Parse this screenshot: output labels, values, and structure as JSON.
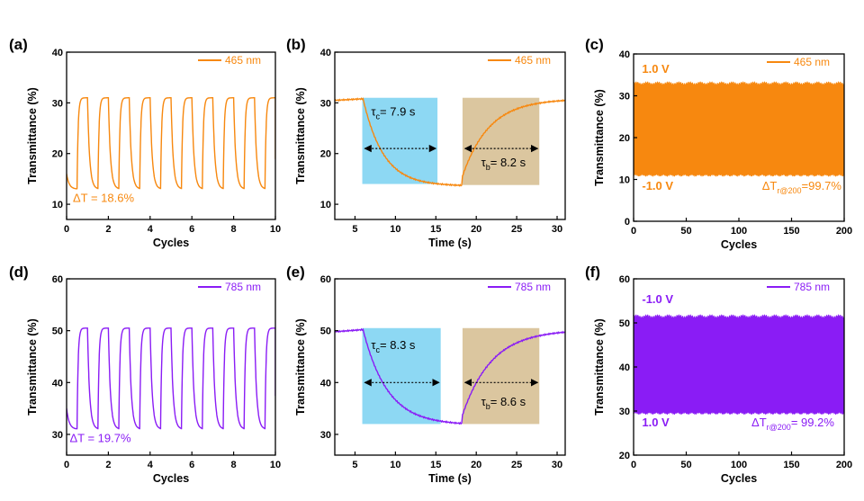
{
  "colors": {
    "orange": "#F7880F",
    "purple": "#8A1CF5",
    "blue_box": "#87D6F2",
    "tan_box": "#D9C39A"
  },
  "chart_data": [
    {
      "id": "a",
      "panel_label": "(a)",
      "type": "line",
      "color": "orange",
      "xlabel": "Cycles",
      "ylabel": "Transmittance (%)",
      "xlim": [
        0,
        10
      ],
      "ylim": [
        7,
        40
      ],
      "xticks": [
        0,
        2,
        4,
        6,
        8,
        10
      ],
      "yticks": [
        10,
        20,
        30,
        40
      ],
      "series": [
        {
          "name": "465 nm",
          "kind": "cycling",
          "cycles": 10,
          "high": 31,
          "low": 13,
          "tau_rise": 0.05,
          "tau_fall": 0.1,
          "start": 16
        }
      ],
      "annotations": [
        {
          "text": "ΔT = 18.6%",
          "x": 0.3,
          "y": 10.5,
          "color": "orange"
        }
      ]
    },
    {
      "id": "b",
      "panel_label": "(b)",
      "type": "line",
      "color": "orange",
      "xlabel": "Time (s)",
      "ylabel": "Transmittance (%)",
      "xlim": [
        2.5,
        31
      ],
      "ylim": [
        7,
        40
      ],
      "xticks": [
        5,
        10,
        15,
        20,
        25,
        30
      ],
      "yticks": [
        10,
        20,
        30,
        40
      ],
      "series": [
        {
          "name": "465 nm",
          "kind": "single",
          "t_color": 6,
          "t_bleach": 18.2,
          "high": 30.8,
          "low": 13.6,
          "tau_c": 2.5,
          "tau_b": 3.3,
          "start": 30.5
        }
      ],
      "boxes": [
        {
          "x0": 5.9,
          "x1": 15.2,
          "y0": 14,
          "y1": 31,
          "color": "blue_box"
        },
        {
          "x0": 18.3,
          "x1": 27.8,
          "y0": 13.8,
          "y1": 31,
          "color": "tan_box"
        }
      ],
      "arrows": [
        {
          "x0": 6.2,
          "x1": 15,
          "y": 21
        },
        {
          "x0": 18.6,
          "x1": 27.6,
          "y": 21
        }
      ],
      "annotations": [
        {
          "text": "τ",
          "sub": "c",
          "rest": "= 7.9 s",
          "x": 7.0,
          "y": 27.5
        },
        {
          "text": "τ",
          "sub": "b",
          "rest": "= 8.2 s",
          "x": 20.6,
          "y": 17.5
        }
      ]
    },
    {
      "id": "c",
      "panel_label": "(c)",
      "type": "area",
      "color": "orange",
      "xlabel": "Cycles",
      "ylabel": "Transmittance (%)",
      "xlim": [
        0,
        200
      ],
      "ylim": [
        0,
        40
      ],
      "xticks": [
        0,
        50,
        100,
        150,
        200
      ],
      "yticks": [
        0,
        10,
        20,
        30,
        40
      ],
      "series": [
        {
          "name": "465 nm",
          "kind": "band",
          "high": 33,
          "low": 11
        }
      ],
      "annotations": [
        {
          "text": "1.0 V",
          "x": 8,
          "y": 35.5,
          "color": "orange",
          "bold": true
        },
        {
          "text": "-1.0 V",
          "x": 8,
          "y": 7.5,
          "color": "orange",
          "bold": true
        },
        {
          "text": "ΔT",
          "sub": "r@200",
          "rest": "=99.7%",
          "x": 122,
          "y": 7.5,
          "color": "orange"
        }
      ]
    },
    {
      "id": "d",
      "panel_label": "(d)",
      "type": "line",
      "color": "purple",
      "xlabel": "Cycles",
      "ylabel": "Transmittance (%)",
      "xlim": [
        0,
        10
      ],
      "ylim": [
        26,
        60
      ],
      "xticks": [
        0,
        2,
        4,
        6,
        8,
        10
      ],
      "yticks": [
        30,
        40,
        50,
        60
      ],
      "series": [
        {
          "name": "785 nm",
          "kind": "cycling",
          "cycles": 10,
          "high": 50.5,
          "low": 31,
          "tau_rise": 0.05,
          "tau_fall": 0.1,
          "start": 35
        }
      ],
      "annotations": [
        {
          "text": "ΔT = 19.7%",
          "x": 0.15,
          "y": 28.5,
          "color": "purple"
        }
      ]
    },
    {
      "id": "e",
      "panel_label": "(e)",
      "type": "line",
      "color": "purple",
      "xlabel": "Time (s)",
      "ylabel": "Transmittance (%)",
      "xlim": [
        2.5,
        31
      ],
      "ylim": [
        26,
        60
      ],
      "xticks": [
        5,
        10,
        15,
        20,
        25,
        30
      ],
      "yticks": [
        30,
        40,
        50,
        60
      ],
      "series": [
        {
          "name": "785 nm",
          "kind": "single",
          "t_color": 6,
          "t_bleach": 18.2,
          "high": 50.2,
          "low": 31.8,
          "tau_c": 3.0,
          "tau_b": 3.6,
          "start": 49.8
        }
      ],
      "boxes": [
        {
          "x0": 5.9,
          "x1": 15.6,
          "y0": 32,
          "y1": 50.5,
          "color": "blue_box"
        },
        {
          "x0": 18.3,
          "x1": 27.8,
          "y0": 32,
          "y1": 50.5,
          "color": "tan_box"
        }
      ],
      "arrows": [
        {
          "x0": 6.2,
          "x1": 15.4,
          "y": 40
        },
        {
          "x0": 18.6,
          "x1": 27.6,
          "y": 40
        }
      ],
      "annotations": [
        {
          "text": "τ",
          "sub": "c",
          "rest": "= 8.3 s",
          "x": 7.0,
          "y": 46.5
        },
        {
          "text": "τ",
          "sub": "b",
          "rest": "= 8.6 s",
          "x": 20.6,
          "y": 35.5
        }
      ]
    },
    {
      "id": "f",
      "panel_label": "(f)",
      "type": "area",
      "color": "purple",
      "xlabel": "Cycles",
      "ylabel": "Transmittance (%)",
      "xlim": [
        0,
        200
      ],
      "ylim": [
        20,
        60
      ],
      "xticks": [
        0,
        50,
        100,
        150,
        200
      ],
      "yticks": [
        20,
        30,
        40,
        50,
        60
      ],
      "series": [
        {
          "name": "785 nm",
          "kind": "band",
          "high": 51.5,
          "low": 29.5
        }
      ],
      "annotations": [
        {
          "text": "-1.0 V",
          "x": 8,
          "y": 54.5,
          "color": "purple",
          "bold": true
        },
        {
          "text": "1.0 V",
          "x": 8,
          "y": 26.5,
          "color": "purple",
          "bold": true
        },
        {
          "text": "ΔT",
          "sub": "r@200",
          "rest": "= 99.2%",
          "x": 112,
          "y": 26.5,
          "color": "purple"
        }
      ]
    }
  ]
}
